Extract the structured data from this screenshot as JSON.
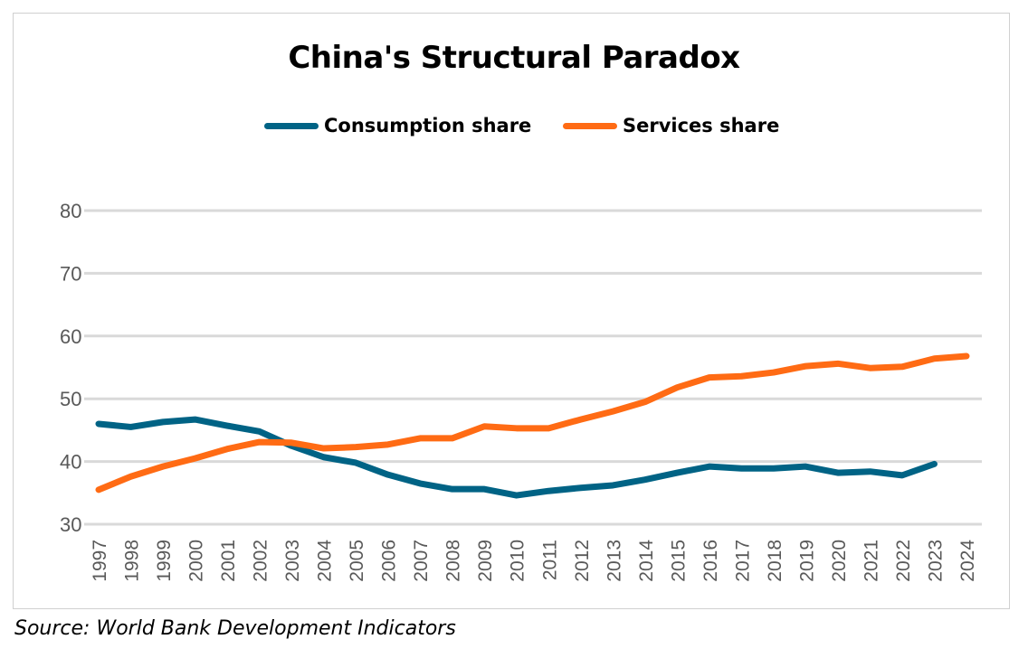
{
  "chart_data": {
    "type": "line",
    "title": "China's Structural Paradox",
    "xlabel": "",
    "ylabel": "",
    "ylim": [
      30,
      80
    ],
    "yticks": [
      30,
      40,
      50,
      60,
      70,
      80
    ],
    "grid": true,
    "legend_position": "top-center",
    "x": [
      "1997",
      "1998",
      "1999",
      "2000",
      "2001",
      "2002",
      "2003",
      "2004",
      "2005",
      "2006",
      "2007",
      "2008",
      "2009",
      "2010",
      "2011",
      "2012",
      "2013",
      "2014",
      "2015",
      "2016",
      "2017",
      "2018",
      "2019",
      "2020",
      "2021",
      "2022",
      "2023",
      "2024"
    ],
    "series": [
      {
        "name": "Consumption share",
        "color": "#006385",
        "values": [
          46.0,
          45.5,
          46.3,
          46.7,
          45.7,
          44.8,
          42.5,
          40.7,
          39.8,
          37.9,
          36.5,
          35.6,
          35.6,
          34.6,
          35.3,
          35.8,
          36.2,
          37.1,
          38.2,
          39.2,
          38.9,
          38.9,
          39.2,
          38.2,
          38.4,
          37.8,
          39.6,
          null
        ]
      },
      {
        "name": "Services share",
        "color": "#FF6B14",
        "values": [
          35.5,
          37.6,
          39.2,
          40.5,
          42.0,
          43.1,
          43.0,
          42.1,
          42.3,
          42.7,
          43.7,
          43.7,
          45.6,
          45.3,
          45.3,
          46.7,
          48.0,
          49.5,
          51.8,
          53.4,
          53.6,
          54.2,
          55.2,
          55.6,
          54.9,
          55.1,
          56.4,
          56.8
        ]
      }
    ]
  },
  "source": "Source: World Bank Development Indicators"
}
